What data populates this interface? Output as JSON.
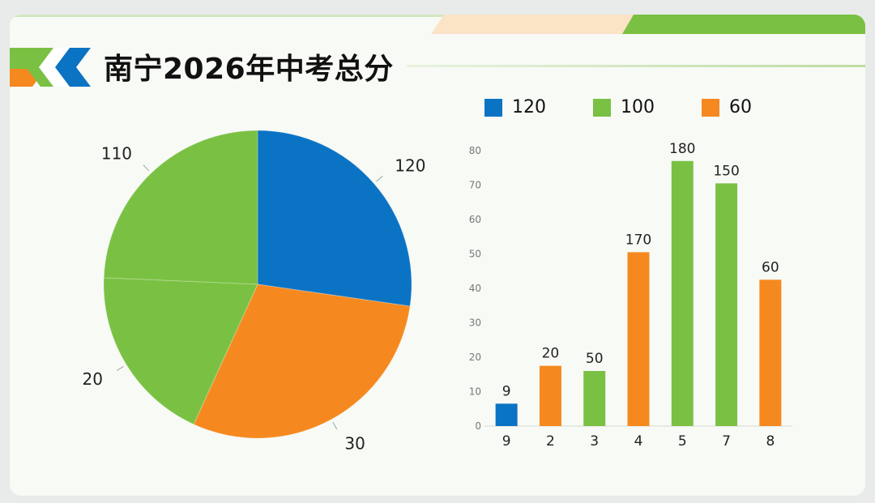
{
  "header": {
    "title": "南宁2026年中考总分"
  },
  "colors": {
    "blue": "#0b73c4",
    "green": "#7ac143",
    "orange": "#f5891f"
  },
  "chart_data": [
    {
      "type": "pie",
      "slices": [
        {
          "label": "120",
          "value": 120,
          "color": "#0b73c4"
        },
        {
          "label": "30",
          "value": 130,
          "color": "#f5891f"
        },
        {
          "label": "20",
          "value": 83,
          "color": "#7ac143"
        },
        {
          "label": "110",
          "value": 107,
          "color": "#7ac143"
        }
      ]
    },
    {
      "type": "bar",
      "legend": [
        {
          "label": "120",
          "color": "#0b73c4"
        },
        {
          "label": "100",
          "color": "#7ac143"
        },
        {
          "label": "60",
          "color": "#f5891f"
        }
      ],
      "legend_position": "top",
      "categories": [
        "9",
        "2",
        "3",
        "4",
        "5",
        "7",
        "8"
      ],
      "values": [
        6.5,
        17.5,
        16,
        50.5,
        77,
        70.5,
        42.5
      ],
      "data_labels": [
        "9",
        "20",
        "50",
        "170",
        "180",
        "150",
        "60"
      ],
      "colors": [
        "#0b73c4",
        "#f5891f",
        "#7ac143",
        "#f5891f",
        "#7ac143",
        "#7ac143",
        "#f5891f"
      ],
      "ylim": [
        0,
        80
      ],
      "yticks": [
        "0",
        "10",
        "20",
        "30",
        "40",
        "50",
        "60",
        "70",
        "80"
      ],
      "grid": false
    }
  ]
}
